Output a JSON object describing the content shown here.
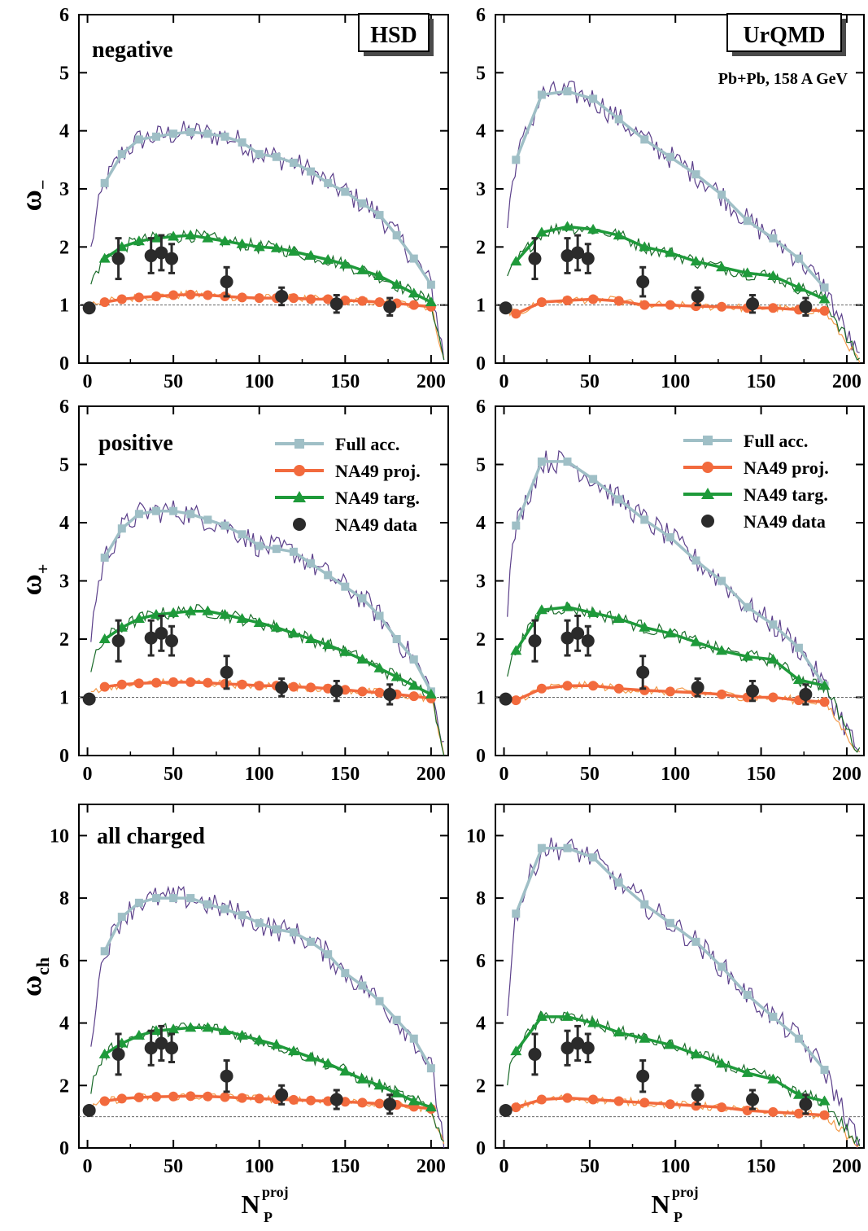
{
  "figure": {
    "x_axis_label_main": "N",
    "x_axis_label_sub": "P",
    "x_axis_label_sup": "proj",
    "row_labels": [
      {
        "main": "ω",
        "sub": "−"
      },
      {
        "main": "ω",
        "sub": "+"
      },
      {
        "main": "ω",
        "sub": "ch"
      }
    ],
    "model_boxes": [
      "HSD",
      "UrQMD"
    ],
    "system_label": "Pb+Pb,  158 A GeV",
    "panel_titles": [
      "negative",
      "positive",
      "all charged"
    ],
    "legend": [
      {
        "label": "Full acc.",
        "color": "#9fbfc6",
        "marker": "square"
      },
      {
        "label": "NA49 proj.",
        "color": "#f26a3d",
        "marker": "circle"
      },
      {
        "label": "NA49 targ.",
        "color": "#1e9a3a",
        "marker": "triangle"
      },
      {
        "label": "NA49 data",
        "color": "#2b2b2b",
        "marker": "filled-circle"
      }
    ],
    "colors": {
      "fluct_full": "#5b3f8a",
      "fluct_targ": "#1a6b2a",
      "fluct_proj": "#f39a4a",
      "reference_line": "#666666"
    }
  },
  "chart_data": [
    {
      "panel": "HSD negative",
      "type": "line",
      "xlim": [
        -5,
        210
      ],
      "ylim": [
        0,
        6
      ],
      "xticks": [
        0,
        50,
        100,
        150,
        200
      ],
      "yticks": [
        0,
        1,
        2,
        3,
        4,
        5,
        6
      ],
      "reference_y": 1,
      "series": [
        {
          "name": "Full acc.",
          "x": [
            10,
            20,
            30,
            40,
            50,
            60,
            70,
            80,
            90,
            100,
            110,
            120,
            130,
            140,
            150,
            160,
            170,
            180,
            190,
            200
          ],
          "y": [
            3.1,
            3.6,
            3.85,
            3.9,
            3.95,
            3.98,
            3.95,
            3.9,
            3.8,
            3.6,
            3.55,
            3.45,
            3.3,
            3.1,
            2.95,
            2.75,
            2.55,
            2.2,
            1.8,
            1.35
          ]
        },
        {
          "name": "NA49 proj.",
          "x": [
            10,
            20,
            30,
            40,
            50,
            60,
            70,
            80,
            90,
            100,
            110,
            120,
            130,
            140,
            150,
            160,
            170,
            180,
            190,
            200
          ],
          "y": [
            1.05,
            1.1,
            1.13,
            1.15,
            1.17,
            1.18,
            1.17,
            1.15,
            1.13,
            1.12,
            1.12,
            1.12,
            1.1,
            1.1,
            1.08,
            1.07,
            1.05,
            1.03,
            1.0,
            0.97
          ]
        },
        {
          "name": "NA49 targ.",
          "x": [
            10,
            20,
            30,
            40,
            50,
            60,
            70,
            80,
            90,
            100,
            110,
            120,
            130,
            140,
            150,
            160,
            170,
            180,
            190,
            200
          ],
          "y": [
            1.8,
            2.0,
            2.1,
            2.15,
            2.18,
            2.2,
            2.15,
            2.1,
            2.05,
            2.0,
            1.98,
            1.92,
            1.85,
            1.78,
            1.7,
            1.6,
            1.5,
            1.35,
            1.2,
            1.05
          ]
        },
        {
          "name": "NA49 data",
          "x": [
            1,
            18,
            37,
            43,
            49,
            81,
            113,
            145,
            176
          ],
          "y": [
            0.95,
            1.8,
            1.85,
            1.9,
            1.8,
            1.4,
            1.15,
            1.02,
            0.97
          ],
          "err": [
            0.05,
            0.35,
            0.3,
            0.3,
            0.25,
            0.25,
            0.15,
            0.15,
            0.15
          ]
        }
      ]
    },
    {
      "panel": "UrQMD negative",
      "type": "line",
      "xlim": [
        -5,
        210
      ],
      "ylim": [
        0,
        6
      ],
      "xticks": [
        0,
        50,
        100,
        150,
        200
      ],
      "yticks": [
        0,
        1,
        2,
        3,
        4,
        5,
        6
      ],
      "reference_y": 1,
      "series": [
        {
          "name": "Full acc.",
          "x": [
            7,
            22,
            37,
            52,
            67,
            82,
            97,
            112,
            127,
            142,
            157,
            172,
            187
          ],
          "y": [
            3.5,
            4.62,
            4.68,
            4.55,
            4.2,
            3.85,
            3.55,
            3.25,
            2.9,
            2.45,
            2.15,
            1.8,
            1.3
          ]
        },
        {
          "name": "NA49 proj.",
          "x": [
            7,
            22,
            37,
            52,
            67,
            82,
            97,
            112,
            127,
            142,
            157,
            172,
            187
          ],
          "y": [
            0.85,
            1.05,
            1.08,
            1.1,
            1.07,
            1.0,
            1.0,
            0.98,
            0.97,
            0.95,
            0.95,
            0.92,
            0.9
          ]
        },
        {
          "name": "NA49 targ.",
          "x": [
            7,
            22,
            37,
            52,
            67,
            82,
            97,
            112,
            127,
            142,
            157,
            172,
            187
          ],
          "y": [
            1.75,
            2.25,
            2.35,
            2.3,
            2.2,
            2.0,
            1.9,
            1.75,
            1.65,
            1.55,
            1.5,
            1.3,
            1.1
          ]
        },
        {
          "name": "NA49 data",
          "x": [
            1,
            18,
            37,
            43,
            49,
            81,
            113,
            145,
            176
          ],
          "y": [
            0.95,
            1.8,
            1.85,
            1.9,
            1.8,
            1.4,
            1.15,
            1.02,
            0.97
          ],
          "err": [
            0.05,
            0.35,
            0.3,
            0.3,
            0.25,
            0.25,
            0.15,
            0.15,
            0.15
          ]
        }
      ]
    },
    {
      "panel": "HSD positive",
      "type": "line",
      "xlim": [
        -5,
        210
      ],
      "ylim": [
        0,
        6
      ],
      "xticks": [
        0,
        50,
        100,
        150,
        200
      ],
      "yticks": [
        0,
        1,
        2,
        3,
        4,
        5,
        6
      ],
      "reference_y": 1,
      "series": [
        {
          "name": "Full acc.",
          "x": [
            10,
            20,
            30,
            40,
            50,
            60,
            70,
            80,
            90,
            100,
            110,
            120,
            130,
            140,
            150,
            160,
            170,
            180,
            190,
            200
          ],
          "y": [
            3.4,
            3.9,
            4.15,
            4.2,
            4.2,
            4.15,
            4.05,
            3.95,
            3.8,
            3.6,
            3.55,
            3.5,
            3.3,
            3.1,
            2.9,
            2.7,
            2.4,
            2.0,
            1.65,
            1.1
          ]
        },
        {
          "name": "NA49 proj.",
          "x": [
            10,
            20,
            30,
            40,
            50,
            60,
            70,
            80,
            90,
            100,
            110,
            120,
            130,
            140,
            150,
            160,
            170,
            180,
            190,
            200
          ],
          "y": [
            1.18,
            1.22,
            1.24,
            1.25,
            1.26,
            1.26,
            1.25,
            1.23,
            1.22,
            1.2,
            1.2,
            1.18,
            1.17,
            1.15,
            1.13,
            1.1,
            1.08,
            1.05,
            1.02,
            0.98
          ]
        },
        {
          "name": "NA49 targ.",
          "x": [
            10,
            20,
            30,
            40,
            50,
            60,
            70,
            80,
            90,
            100,
            110,
            120,
            130,
            140,
            150,
            160,
            170,
            180,
            190,
            200
          ],
          "y": [
            2.0,
            2.2,
            2.35,
            2.42,
            2.45,
            2.48,
            2.48,
            2.42,
            2.35,
            2.28,
            2.2,
            2.1,
            2.0,
            1.9,
            1.78,
            1.65,
            1.5,
            1.35,
            1.2,
            1.05
          ]
        },
        {
          "name": "NA49 data",
          "x": [
            1,
            18,
            37,
            43,
            49,
            81,
            113,
            145,
            176
          ],
          "y": [
            0.97,
            1.97,
            2.02,
            2.1,
            1.97,
            1.43,
            1.17,
            1.11,
            1.05
          ],
          "err": [
            0.05,
            0.35,
            0.3,
            0.3,
            0.25,
            0.28,
            0.15,
            0.17,
            0.17
          ]
        }
      ]
    },
    {
      "panel": "UrQMD positive",
      "type": "line",
      "xlim": [
        -5,
        210
      ],
      "ylim": [
        0,
        6
      ],
      "xticks": [
        0,
        50,
        100,
        150,
        200
      ],
      "yticks": [
        0,
        1,
        2,
        3,
        4,
        5,
        6
      ],
      "reference_y": 1,
      "series": [
        {
          "name": "Full acc.",
          "x": [
            7,
            22,
            37,
            52,
            67,
            82,
            97,
            112,
            127,
            142,
            157,
            172,
            187
          ],
          "y": [
            3.95,
            5.05,
            5.05,
            4.75,
            4.4,
            4.05,
            3.75,
            3.35,
            3.0,
            2.55,
            2.25,
            1.85,
            1.2
          ]
        },
        {
          "name": "NA49 proj.",
          "x": [
            7,
            22,
            37,
            52,
            67,
            82,
            97,
            112,
            127,
            142,
            157,
            172,
            187
          ],
          "y": [
            0.95,
            1.15,
            1.2,
            1.2,
            1.15,
            1.12,
            1.1,
            1.08,
            1.05,
            1.0,
            1.0,
            0.95,
            0.92
          ]
        },
        {
          "name": "NA49 targ.",
          "x": [
            7,
            22,
            37,
            52,
            67,
            82,
            97,
            112,
            127,
            142,
            157,
            172,
            187
          ],
          "y": [
            1.8,
            2.5,
            2.55,
            2.45,
            2.35,
            2.2,
            2.1,
            1.95,
            1.8,
            1.7,
            1.65,
            1.3,
            1.2
          ]
        },
        {
          "name": "NA49 data",
          "x": [
            1,
            18,
            37,
            43,
            49,
            81,
            113,
            145,
            176
          ],
          "y": [
            0.97,
            1.97,
            2.02,
            2.1,
            1.97,
            1.43,
            1.17,
            1.11,
            1.05
          ],
          "err": [
            0.05,
            0.35,
            0.3,
            0.3,
            0.25,
            0.28,
            0.15,
            0.17,
            0.17
          ]
        }
      ]
    },
    {
      "panel": "HSD all charged",
      "type": "line",
      "xlim": [
        -5,
        210
      ],
      "ylim": [
        0,
        11
      ],
      "xticks": [
        0,
        50,
        100,
        150,
        200
      ],
      "yticks": [
        0,
        2,
        4,
        6,
        8,
        10
      ],
      "reference_y": 1,
      "series": [
        {
          "name": "Full acc.",
          "x": [
            10,
            20,
            30,
            40,
            50,
            60,
            70,
            80,
            90,
            100,
            110,
            120,
            130,
            140,
            150,
            160,
            170,
            180,
            190,
            200
          ],
          "y": [
            6.3,
            7.4,
            7.85,
            8.0,
            8.0,
            8.0,
            7.8,
            7.65,
            7.45,
            7.2,
            7.0,
            6.9,
            6.6,
            6.2,
            5.6,
            5.2,
            4.7,
            4.1,
            3.5,
            2.55
          ]
        },
        {
          "name": "NA49 proj.",
          "x": [
            10,
            20,
            30,
            40,
            50,
            60,
            70,
            80,
            90,
            100,
            110,
            120,
            130,
            140,
            150,
            160,
            170,
            180,
            190,
            200
          ],
          "y": [
            1.5,
            1.58,
            1.62,
            1.64,
            1.65,
            1.66,
            1.65,
            1.63,
            1.6,
            1.58,
            1.56,
            1.54,
            1.52,
            1.5,
            1.48,
            1.45,
            1.42,
            1.38,
            1.32,
            1.25
          ]
        },
        {
          "name": "NA49 targ.",
          "x": [
            10,
            20,
            30,
            40,
            50,
            60,
            70,
            80,
            90,
            100,
            110,
            120,
            130,
            140,
            150,
            160,
            170,
            180,
            190,
            200
          ],
          "y": [
            3.0,
            3.35,
            3.6,
            3.75,
            3.8,
            3.85,
            3.85,
            3.75,
            3.6,
            3.45,
            3.3,
            3.1,
            2.9,
            2.7,
            2.45,
            2.2,
            2.0,
            1.75,
            1.5,
            1.3
          ]
        },
        {
          "name": "NA49 data",
          "x": [
            1,
            18,
            37,
            43,
            49,
            81,
            113,
            145,
            176
          ],
          "y": [
            1.2,
            3.0,
            3.2,
            3.35,
            3.2,
            2.3,
            1.7,
            1.55,
            1.4
          ],
          "err": [
            0.1,
            0.65,
            0.55,
            0.55,
            0.45,
            0.5,
            0.3,
            0.3,
            0.3
          ]
        }
      ]
    },
    {
      "panel": "UrQMD all charged",
      "type": "line",
      "xlim": [
        -5,
        210
      ],
      "ylim": [
        0,
        11
      ],
      "xticks": [
        0,
        50,
        100,
        150,
        200
      ],
      "yticks": [
        0,
        2,
        4,
        6,
        8,
        10
      ],
      "reference_y": 1,
      "series": [
        {
          "name": "Full acc.",
          "x": [
            7,
            22,
            37,
            52,
            67,
            82,
            97,
            112,
            127,
            142,
            157,
            172,
            187
          ],
          "y": [
            7.5,
            9.6,
            9.6,
            9.3,
            8.5,
            7.8,
            7.2,
            6.6,
            5.8,
            4.9,
            4.2,
            3.5,
            2.5
          ]
        },
        {
          "name": "NA49 proj.",
          "x": [
            7,
            22,
            37,
            52,
            67,
            82,
            97,
            112,
            127,
            142,
            157,
            172,
            187
          ],
          "y": [
            1.3,
            1.55,
            1.6,
            1.55,
            1.5,
            1.45,
            1.4,
            1.35,
            1.3,
            1.2,
            1.15,
            1.1,
            1.05
          ]
        },
        {
          "name": "NA49 targ.",
          "x": [
            7,
            22,
            37,
            52,
            67,
            82,
            97,
            112,
            127,
            142,
            157,
            172,
            187
          ],
          "y": [
            3.1,
            4.2,
            4.2,
            4.0,
            3.7,
            3.5,
            3.3,
            3.0,
            2.7,
            2.4,
            2.2,
            1.7,
            1.5
          ]
        },
        {
          "name": "NA49 data",
          "x": [
            1,
            18,
            37,
            43,
            49,
            81,
            113,
            145,
            176
          ],
          "y": [
            1.2,
            3.0,
            3.2,
            3.35,
            3.2,
            2.3,
            1.7,
            1.55,
            1.4
          ],
          "err": [
            0.1,
            0.65,
            0.55,
            0.55,
            0.45,
            0.5,
            0.3,
            0.3,
            0.3
          ]
        }
      ]
    }
  ]
}
